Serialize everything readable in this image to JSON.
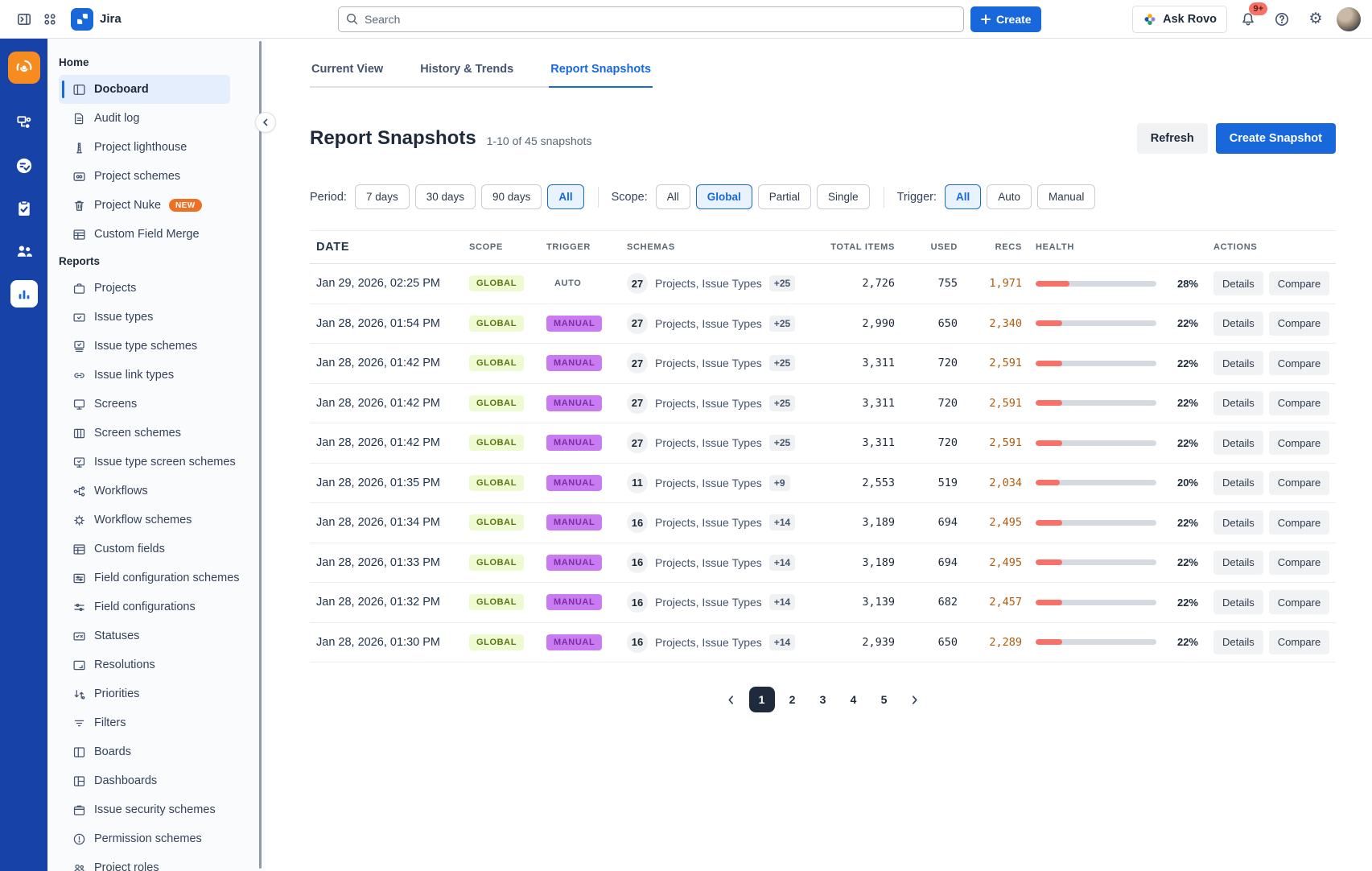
{
  "topbar": {
    "product": "Jira",
    "search_placeholder": "Search",
    "create_label": "Create",
    "ask_rovo_label": "Ask Rovo",
    "notification_count": "9+",
    "icons": [
      "sidebar-expand-icon",
      "app-switcher-icon",
      "jira-logo",
      "search-icon",
      "plus-icon",
      "rovo-icon",
      "bell-icon",
      "help-icon",
      "gear-icon",
      "avatar"
    ]
  },
  "colors": {
    "accent_blue": "#1868db",
    "rail_blue": "#1743a9",
    "app_tile_orange": "#f68b1f",
    "health_fill": "#f87168",
    "scope_badge_bg": "#eefbd2",
    "scope_badge_text": "#5b7313",
    "manual_badge_bg": "#c97bf2",
    "manual_badge_text": "#7b2f9e",
    "recs_text": "#b15a0a",
    "new_badge_orange": "#ed7024",
    "pagination_active": "#1f2a3d"
  },
  "rail": {
    "items": [
      {
        "icon": "app-tile-radar-icon",
        "selected": false,
        "tile": true
      },
      {
        "icon": "automation-flow-icon",
        "selected": false
      },
      {
        "icon": "checklist-circle-icon",
        "selected": false
      },
      {
        "icon": "clipboard-check-icon",
        "selected": false
      },
      {
        "icon": "people-icon",
        "selected": false
      },
      {
        "icon": "bar-chart-icon",
        "selected": true
      }
    ]
  },
  "sidebar": {
    "sections": [
      {
        "title": "Home",
        "items": [
          {
            "label": "Docboard",
            "icon": "board-icon",
            "selected": true
          },
          {
            "label": "Audit log",
            "icon": "document-icon"
          },
          {
            "label": "Project lighthouse",
            "icon": "lighthouse-icon"
          },
          {
            "label": "Project schemes",
            "icon": "folder-loop-icon"
          },
          {
            "label": "Project Nuke",
            "icon": "trash-icon",
            "badge": "NEW"
          },
          {
            "label": "Custom Field Merge",
            "icon": "table-icon"
          }
        ]
      },
      {
        "title": "Reports",
        "items": [
          {
            "label": "Projects",
            "icon": "briefcase-icon"
          },
          {
            "label": "Issue types",
            "icon": "checkbox-card-icon"
          },
          {
            "label": "Issue type schemes",
            "icon": "card-stack-check-icon"
          },
          {
            "label": "Issue link types",
            "icon": "link-icon"
          },
          {
            "label": "Screens",
            "icon": "monitor-icon"
          },
          {
            "label": "Screen schemes",
            "icon": "columns-icon"
          },
          {
            "label": "Issue type screen schemes",
            "icon": "monitor-check-icon"
          },
          {
            "label": "Workflows",
            "icon": "workflow-icon"
          },
          {
            "label": "Workflow schemes",
            "icon": "gear-icon"
          },
          {
            "label": "Custom fields",
            "icon": "table-icon"
          },
          {
            "label": "Field configuration schemes",
            "icon": "sliders-card-icon"
          },
          {
            "label": "Field configurations",
            "icon": "sliders-icon"
          },
          {
            "label": "Statuses",
            "icon": "status-icon"
          },
          {
            "label": "Resolutions",
            "icon": "frame-icon"
          },
          {
            "label": "Priorities",
            "icon": "priority-arrows-icon"
          },
          {
            "label": "Filters",
            "icon": "filter-icon"
          },
          {
            "label": "Boards",
            "icon": "board-split-icon"
          },
          {
            "label": "Dashboards",
            "icon": "dashboard-icon"
          },
          {
            "label": "Issue security schemes",
            "icon": "archive-icon"
          },
          {
            "label": "Permission schemes",
            "icon": "alert-circle-icon"
          },
          {
            "label": "Project roles",
            "icon": "people-outline-icon"
          }
        ]
      }
    ]
  },
  "tabs": [
    {
      "label": "Current View",
      "active": false
    },
    {
      "label": "History & Trends",
      "active": false
    },
    {
      "label": "Report Snapshots",
      "active": true
    }
  ],
  "page": {
    "title": "Report Snapshots",
    "subtitle": "1-10 of 45 snapshots",
    "refresh_label": "Refresh",
    "create_snapshot_label": "Create Snapshot"
  },
  "filters": [
    {
      "label": "Period:",
      "options": [
        {
          "label": "7 days"
        },
        {
          "label": "30 days"
        },
        {
          "label": "90 days"
        },
        {
          "label": "All",
          "selected": true
        }
      ]
    },
    {
      "label": "Scope:",
      "options": [
        {
          "label": "All"
        },
        {
          "label": "Global",
          "selected": true
        },
        {
          "label": "Partial"
        },
        {
          "label": "Single"
        }
      ]
    },
    {
      "label": "Trigger:",
      "options": [
        {
          "label": "All",
          "selected": true
        },
        {
          "label": "Auto"
        },
        {
          "label": "Manual"
        }
      ]
    }
  ],
  "table": {
    "columns": [
      "Date",
      "Scope",
      "Trigger",
      "Schemas",
      "Total Items",
      "Used",
      "Recs",
      "Health",
      "Actions"
    ],
    "actions": {
      "details": "Details",
      "compare": "Compare"
    },
    "rows": [
      {
        "date": "Jan 29, 2026, 02:25 PM",
        "scope": "GLOBAL",
        "trigger": "AUTO",
        "schemas_count": "27",
        "schemas_label": "Projects, Issue Types",
        "schemas_extra": "+25",
        "total": "2,726",
        "used": "755",
        "recs": "1,971",
        "health": 28
      },
      {
        "date": "Jan 28, 2026, 01:54 PM",
        "scope": "GLOBAL",
        "trigger": "MANUAL",
        "schemas_count": "27",
        "schemas_label": "Projects, Issue Types",
        "schemas_extra": "+25",
        "total": "2,990",
        "used": "650",
        "recs": "2,340",
        "health": 22
      },
      {
        "date": "Jan 28, 2026, 01:42 PM",
        "scope": "GLOBAL",
        "trigger": "MANUAL",
        "schemas_count": "27",
        "schemas_label": "Projects, Issue Types",
        "schemas_extra": "+25",
        "total": "3,311",
        "used": "720",
        "recs": "2,591",
        "health": 22
      },
      {
        "date": "Jan 28, 2026, 01:42 PM",
        "scope": "GLOBAL",
        "trigger": "MANUAL",
        "schemas_count": "27",
        "schemas_label": "Projects, Issue Types",
        "schemas_extra": "+25",
        "total": "3,311",
        "used": "720",
        "recs": "2,591",
        "health": 22
      },
      {
        "date": "Jan 28, 2026, 01:42 PM",
        "scope": "GLOBAL",
        "trigger": "MANUAL",
        "schemas_count": "27",
        "schemas_label": "Projects, Issue Types",
        "schemas_extra": "+25",
        "total": "3,311",
        "used": "720",
        "recs": "2,591",
        "health": 22
      },
      {
        "date": "Jan 28, 2026, 01:35 PM",
        "scope": "GLOBAL",
        "trigger": "MANUAL",
        "schemas_count": "11",
        "schemas_label": "Projects, Issue Types",
        "schemas_extra": "+9",
        "total": "2,553",
        "used": "519",
        "recs": "2,034",
        "health": 20
      },
      {
        "date": "Jan 28, 2026, 01:34 PM",
        "scope": "GLOBAL",
        "trigger": "MANUAL",
        "schemas_count": "16",
        "schemas_label": "Projects, Issue Types",
        "schemas_extra": "+14",
        "total": "3,189",
        "used": "694",
        "recs": "2,495",
        "health": 22
      },
      {
        "date": "Jan 28, 2026, 01:33 PM",
        "scope": "GLOBAL",
        "trigger": "MANUAL",
        "schemas_count": "16",
        "schemas_label": "Projects, Issue Types",
        "schemas_extra": "+14",
        "total": "3,189",
        "used": "694",
        "recs": "2,495",
        "health": 22
      },
      {
        "date": "Jan 28, 2026, 01:32 PM",
        "scope": "GLOBAL",
        "trigger": "MANUAL",
        "schemas_count": "16",
        "schemas_label": "Projects, Issue Types",
        "schemas_extra": "+14",
        "total": "3,139",
        "used": "682",
        "recs": "2,457",
        "health": 22
      },
      {
        "date": "Jan 28, 2026, 01:30 PM",
        "scope": "GLOBAL",
        "trigger": "MANUAL",
        "schemas_count": "16",
        "schemas_label": "Projects, Issue Types",
        "schemas_extra": "+14",
        "total": "2,939",
        "used": "650",
        "recs": "2,289",
        "health": 22
      }
    ]
  },
  "pagination": {
    "pages": [
      "1",
      "2",
      "3",
      "4",
      "5"
    ],
    "current": "1"
  }
}
